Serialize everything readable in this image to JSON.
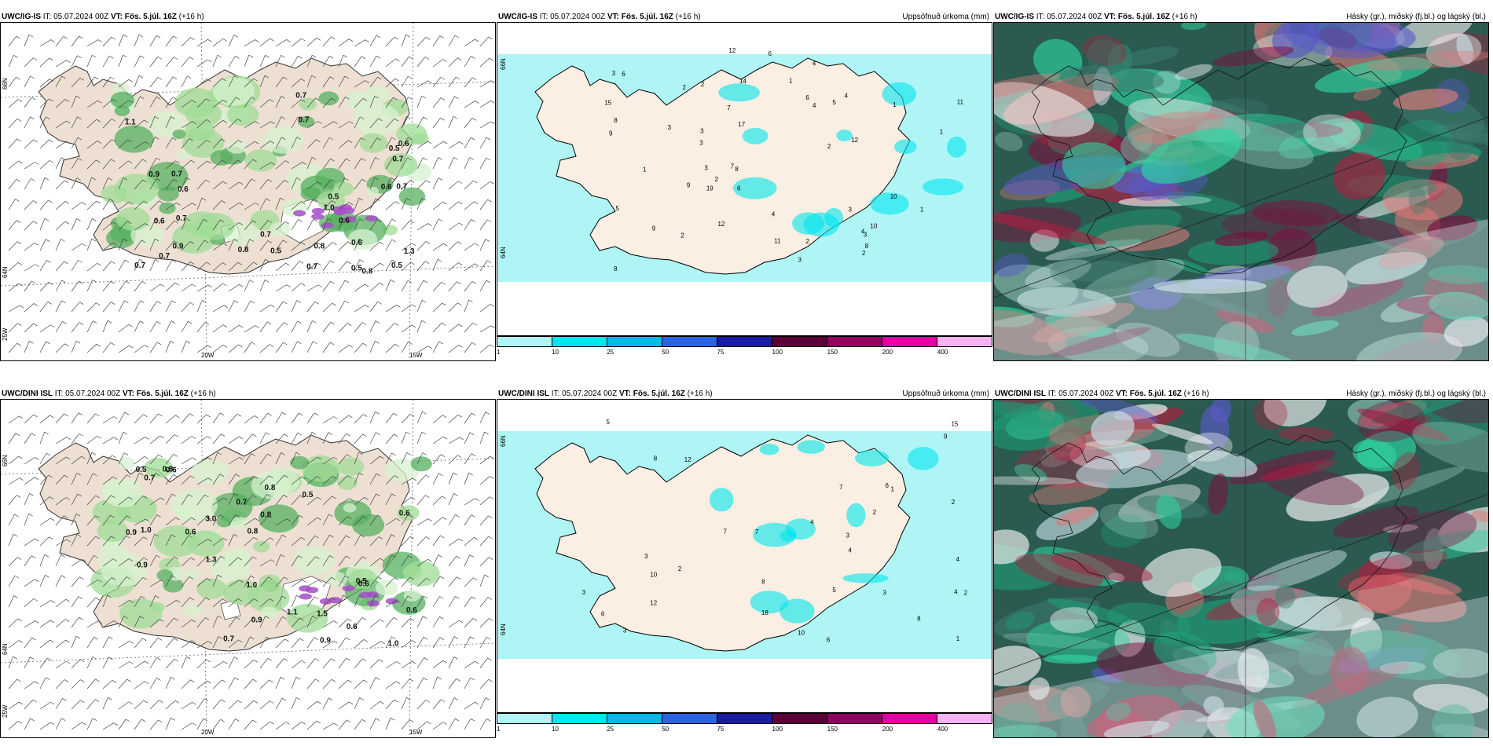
{
  "common": {
    "it_label": "IT: 05.07.2024 00Z",
    "vt_label": "VT: Fös. 5.júl. 16Z",
    "lead": "(+16 h)",
    "precip_title": "Uppsöfnuð úrkoma (mm)",
    "cloud_title": "Hásky (gr.), miðský (fj.bl.) og lágský (bl.)"
  },
  "rows": [
    {
      "model": "UWC/IG-IS"
    },
    {
      "model": "UWC/DINI ISL"
    }
  ],
  "axis_labels": {
    "lat66": "66N",
    "lat64": "64N",
    "lon25": "25W",
    "lon20": "20W",
    "lon15": "15W"
  },
  "colorbar": {
    "colors": [
      "#aff5f5",
      "#00e6ef",
      "#00b9ea",
      "#2b63e5",
      "#1a1ba3",
      "#5c0038",
      "#920060",
      "#e600a4",
      "#f5b3f2"
    ],
    "ticks": [
      "1",
      "10",
      "25",
      "50",
      "75",
      "100",
      "150",
      "200",
      "400"
    ]
  },
  "labels_precip_top": [
    "2",
    "2",
    "4",
    "3",
    "2",
    "3",
    "3",
    "3",
    "10",
    "4",
    "4",
    "7",
    "6",
    "10",
    "8",
    "9",
    "8",
    "9",
    "3",
    "5",
    "9",
    "6",
    "8",
    "6",
    "12",
    "14",
    "11",
    "15",
    "7",
    "12",
    "11",
    "12",
    "19",
    "17",
    "5",
    "3",
    "8",
    "4",
    "3",
    "2",
    "1",
    "1",
    "2",
    "1",
    "1",
    "3",
    "2",
    "4",
    "6",
    "2",
    "1"
  ],
  "labels_rain_top": [
    "0.5",
    "0.6",
    "0.6",
    "0.7",
    "0.5",
    "0.8",
    "0.7",
    "0.7",
    "0.5",
    "0.7",
    "0.9",
    "1.1",
    "0.9",
    "0.6",
    "0.7",
    "0.8",
    "0.7",
    "0.5",
    "0.8",
    "0.7",
    "0.6",
    "0.7",
    "0.6",
    "0.5",
    "1.3",
    "0.7",
    "0.7",
    "0.6",
    "1.0"
  ],
  "labels_precip_bottom": [
    "1",
    "3",
    "3",
    "10",
    "5",
    "4",
    "7",
    "6",
    "8",
    "9",
    "12",
    "3",
    "4",
    "6",
    "7",
    "8",
    "4",
    "2",
    "2",
    "3",
    "12",
    "5",
    "4",
    "10",
    "8",
    "18",
    "15",
    "2",
    "1",
    "3",
    "2",
    "6",
    "7"
  ],
  "labels_rain_bottom": [
    "0.6",
    "0.5",
    "0.9",
    "0.5",
    "0.6",
    "0.7",
    "0.8",
    "1.0",
    "0.8",
    "0.6",
    "0.9",
    "0.6",
    "0.7",
    "0.6",
    "1.0",
    "0.8",
    "0.6",
    "0.5",
    "0.7",
    "0.8",
    "1.0",
    "1.1",
    "0.9",
    "1.5",
    "1.3",
    "3.0",
    "0.9"
  ]
}
